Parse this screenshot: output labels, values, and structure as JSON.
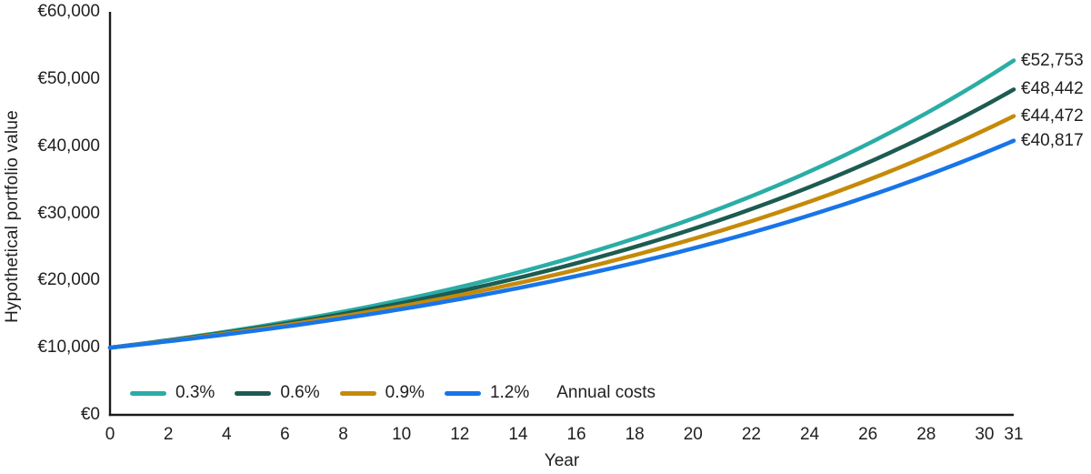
{
  "styles": {
    "background": "#ffffff",
    "text_color": "#1f1f1f",
    "axis_color": "#1a1a1a"
  },
  "chart_data": {
    "type": "line",
    "title": "",
    "xlabel": "Year",
    "ylabel": "Hypothetical portfolio value",
    "legend_title": "Annual costs",
    "legend_position": "bottom-left-inside",
    "grid": false,
    "x_range": [
      0,
      31
    ],
    "y_range": [
      0,
      60000
    ],
    "x_ticks": [
      0,
      2,
      4,
      6,
      8,
      10,
      12,
      14,
      16,
      18,
      20,
      22,
      24,
      26,
      28,
      30,
      31
    ],
    "y_ticks": [
      {
        "value": 0,
        "label": "€0"
      },
      {
        "value": 10000,
        "label": "€10,000"
      },
      {
        "value": 20000,
        "label": "€20,000"
      },
      {
        "value": 30000,
        "label": "€30,000"
      },
      {
        "value": 40000,
        "label": "€40,000"
      },
      {
        "value": 50000,
        "label": "€50,000"
      },
      {
        "value": 60000,
        "label": "€60,000"
      }
    ],
    "start_value": 10000,
    "interpolation": "exponential",
    "series": [
      {
        "name": "0.3%",
        "color": "#2AADA6",
        "start_value": 10000,
        "end_value": 52753,
        "end_label": "€52,753",
        "approx_annual_net_growth": 0.0551
      },
      {
        "name": "0.6%",
        "color": "#1D5B51",
        "start_value": 10000,
        "end_value": 48442,
        "end_label": "€48,442",
        "approx_annual_net_growth": 0.0522
      },
      {
        "name": "0.9%",
        "color": "#C68A08",
        "start_value": 10000,
        "end_value": 44472,
        "end_label": "€44,472",
        "approx_annual_net_growth": 0.0493
      },
      {
        "name": "1.2%",
        "color": "#1875E9",
        "start_value": 10000,
        "end_value": 40817,
        "end_label": "€40,817",
        "approx_annual_net_growth": 0.0464
      }
    ]
  }
}
